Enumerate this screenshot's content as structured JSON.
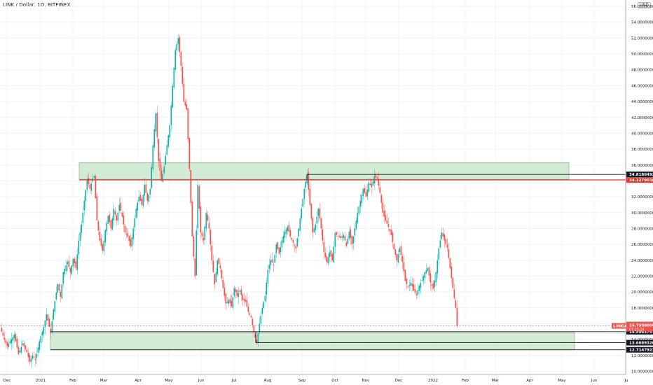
{
  "symbol": "LINK / Dollar, 1D, BITFINEX",
  "currency": "USD",
  "chart_data": {
    "type": "candlestick",
    "title": "LINK / Dollar, 1D, BITFINEX",
    "y_axis": {
      "ylim": [
        9.6,
        56.8
      ],
      "ticks": [
        "10.00000000",
        "12.00000000",
        "14.00000000",
        "16.00000000",
        "18.00000000",
        "20.00000000",
        "22.00000000",
        "24.00000000",
        "26.00000000",
        "28.00000000",
        "30.00000000",
        "32.00000000",
        "34.00000000",
        "36.00000000",
        "38.00000000",
        "40.00000000",
        "42.00000000",
        "44.00000000",
        "46.00000000",
        "48.00000000",
        "50.00000000",
        "52.00000000",
        "54.00000000",
        "56.00000000"
      ]
    },
    "x_axis": {
      "ticks": [
        "Dec",
        "2021",
        "Feb",
        "Mar",
        "Apr",
        "May",
        "Jun",
        "Jul",
        "Aug",
        "Sep",
        "Oct",
        "Nov",
        "Dec",
        "2022",
        "Feb",
        "Mar",
        "Apr",
        "May",
        "Jun",
        "Ju"
      ]
    },
    "zones": [
      {
        "type": "resistance",
        "top": 36.3,
        "bottom": 34.2,
        "color": "#c8e6c9"
      },
      {
        "type": "support",
        "top": 14.9,
        "bottom": 12.7,
        "color": "#c8e6c9"
      }
    ],
    "horizontal_lines": [
      {
        "value": 34.81864922,
        "label": "34.81864922",
        "color": "#131722"
      },
      {
        "value": 34.12790369,
        "label": "34.12790369",
        "color": "#e53935"
      },
      {
        "value": 14.9963757,
        "label": "14.99637570",
        "color": "#131722"
      },
      {
        "value": 13.60893207,
        "label": "13.60893207",
        "color": "#131722"
      },
      {
        "value": 12.71479219,
        "label": "12.71479219",
        "color": "#131722"
      }
    ],
    "last_price": {
      "symbol": "LINKUSD",
      "value": "15.73000000",
      "countdown": "07:15:24",
      "color": "#ef5350"
    },
    "series_path": [
      [
        0,
        15.5
      ],
      [
        6,
        14.0
      ],
      [
        10,
        13.2
      ],
      [
        14,
        13.8
      ],
      [
        20,
        14.6
      ],
      [
        26,
        12.2
      ],
      [
        32,
        13.5
      ],
      [
        38,
        12.4
      ],
      [
        42,
        11.2
      ],
      [
        46,
        12.0
      ],
      [
        50,
        11.4
      ],
      [
        56,
        13.8
      ],
      [
        62,
        15.6
      ],
      [
        66,
        17.2
      ],
      [
        72,
        14.8
      ],
      [
        76,
        17.8
      ],
      [
        82,
        21.0
      ],
      [
        86,
        19.4
      ],
      [
        90,
        22.5
      ],
      [
        96,
        23.8
      ],
      [
        100,
        22.5
      ],
      [
        104,
        24.2
      ],
      [
        108,
        23.0
      ],
      [
        112,
        26.5
      ],
      [
        116,
        28.5
      ],
      [
        120,
        31.5
      ],
      [
        124,
        34.2
      ],
      [
        128,
        33.0
      ],
      [
        132,
        34.3
      ],
      [
        134,
        34.6
      ],
      [
        138,
        29.0
      ],
      [
        142,
        26.5
      ],
      [
        146,
        25.2
      ],
      [
        150,
        27.8
      ],
      [
        154,
        29.6
      ],
      [
        158,
        28.0
      ],
      [
        162,
        30.5
      ],
      [
        166,
        29.0
      ],
      [
        170,
        31.0
      ],
      [
        174,
        29.5
      ],
      [
        178,
        27.5
      ],
      [
        182,
        27.0
      ],
      [
        186,
        25.8
      ],
      [
        190,
        28.0
      ],
      [
        194,
        30.5
      ],
      [
        198,
        32.0
      ],
      [
        202,
        31.0
      ],
      [
        206,
        33.5
      ],
      [
        210,
        31.5
      ],
      [
        214,
        33.0
      ],
      [
        218,
        38.5
      ],
      [
        222,
        42.5
      ],
      [
        226,
        36.5
      ],
      [
        230,
        34.0
      ],
      [
        234,
        35.8
      ],
      [
        238,
        38.5
      ],
      [
        242,
        41.0
      ],
      [
        246,
        46.0
      ],
      [
        250,
        50.5
      ],
      [
        254,
        52.0
      ],
      [
        258,
        48.5
      ],
      [
        262,
        44.0
      ],
      [
        266,
        43.0
      ],
      [
        270,
        35.5
      ],
      [
        274,
        27.0
      ],
      [
        278,
        22.0
      ],
      [
        282,
        33.5
      ],
      [
        286,
        27.5
      ],
      [
        290,
        26.5
      ],
      [
        294,
        30.0
      ],
      [
        298,
        28.0
      ],
      [
        302,
        24.0
      ],
      [
        306,
        21.0
      ],
      [
        310,
        24.0
      ],
      [
        314,
        23.0
      ],
      [
        318,
        20.5
      ],
      [
        322,
        18.5
      ],
      [
        326,
        19.0
      ],
      [
        330,
        18.2
      ],
      [
        334,
        20.5
      ],
      [
        338,
        19.5
      ],
      [
        342,
        20.2
      ],
      [
        346,
        19.0
      ],
      [
        350,
        18.8
      ],
      [
        354,
        17.5
      ],
      [
        358,
        16.8
      ],
      [
        362,
        14.9
      ],
      [
        366,
        13.6
      ],
      [
        370,
        16.0
      ],
      [
        374,
        18.0
      ],
      [
        378,
        19.5
      ],
      [
        382,
        22.8
      ],
      [
        386,
        24.0
      ],
      [
        390,
        23.4
      ],
      [
        394,
        26.0
      ],
      [
        398,
        24.8
      ],
      [
        402,
        26.5
      ],
      [
        406,
        27.6
      ],
      [
        410,
        28.2
      ],
      [
        414,
        27.0
      ],
      [
        418,
        26.2
      ],
      [
        422,
        25.5
      ],
      [
        426,
        28.0
      ],
      [
        430,
        30.5
      ],
      [
        434,
        33.0
      ],
      [
        438,
        34.8
      ],
      [
        442,
        31.0
      ],
      [
        446,
        27.5
      ],
      [
        450,
        28.5
      ],
      [
        454,
        30.5
      ],
      [
        458,
        28.0
      ],
      [
        462,
        25.0
      ],
      [
        466,
        23.8
      ],
      [
        470,
        25.0
      ],
      [
        474,
        24.0
      ],
      [
        478,
        27.4
      ],
      [
        482,
        27.0
      ],
      [
        486,
        26.8
      ],
      [
        490,
        27.2
      ],
      [
        494,
        25.8
      ],
      [
        498,
        27.6
      ],
      [
        502,
        26.0
      ],
      [
        506,
        28.0
      ],
      [
        510,
        30.0
      ],
      [
        514,
        31.5
      ],
      [
        518,
        33.0
      ],
      [
        522,
        32.0
      ],
      [
        526,
        33.8
      ],
      [
        530,
        33.2
      ],
      [
        534,
        34.6
      ],
      [
        538,
        34.3
      ],
      [
        542,
        32.5
      ],
      [
        546,
        30.0
      ],
      [
        550,
        29.0
      ],
      [
        554,
        28.2
      ],
      [
        558,
        27.2
      ],
      [
        562,
        25.4
      ],
      [
        566,
        24.0
      ],
      [
        570,
        25.5
      ],
      [
        574,
        23.8
      ],
      [
        578,
        21.4
      ],
      [
        582,
        20.6
      ],
      [
        586,
        21.2
      ],
      [
        590,
        20.2
      ],
      [
        594,
        19.6
      ],
      [
        598,
        20.8
      ],
      [
        602,
        21.5
      ],
      [
        606,
        22.5
      ],
      [
        610,
        23.0
      ],
      [
        614,
        21.2
      ],
      [
        618,
        20.4
      ],
      [
        622,
        22.5
      ],
      [
        626,
        25.5
      ],
      [
        630,
        27.5
      ],
      [
        634,
        26.5
      ],
      [
        638,
        25.6
      ],
      [
        642,
        23.0
      ],
      [
        646,
        20.5
      ],
      [
        650,
        18.0
      ],
      [
        652,
        15.73
      ]
    ]
  }
}
